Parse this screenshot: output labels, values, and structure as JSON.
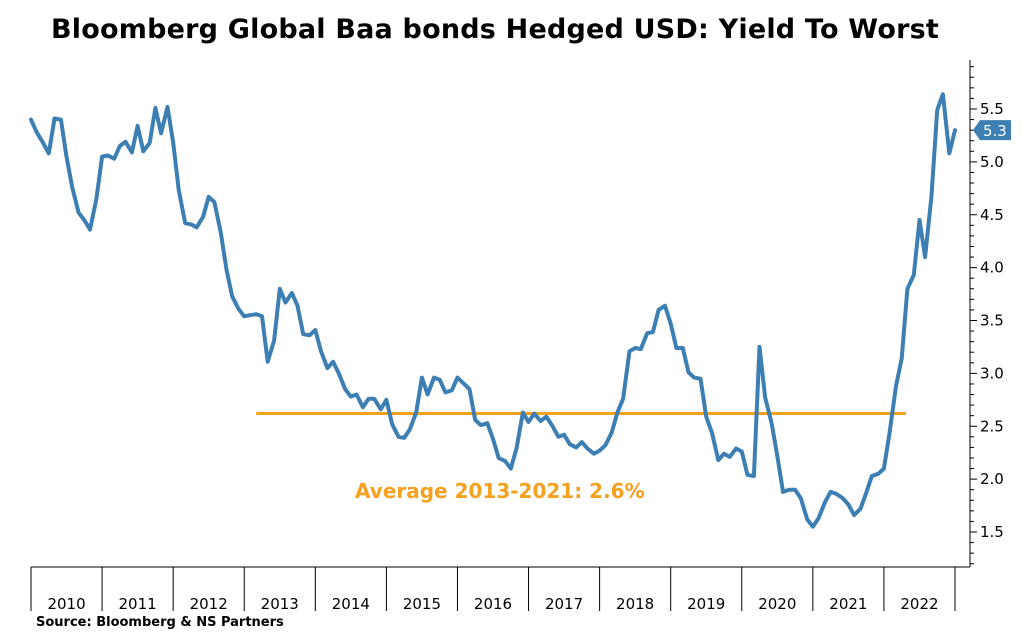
{
  "title": "Bloomberg Global Baa bonds Hedged USD: Yield To Worst",
  "source": "Source: Bloomberg & NS Partners",
  "colors": {
    "series": "#3d7fb3",
    "average": "#f5a01f",
    "axis": "#000000"
  },
  "chart_data": {
    "type": "line",
    "title": "Bloomberg Global Baa bonds Hedged USD: Yield To Worst",
    "x_categories": [
      "2010",
      "2011",
      "2012",
      "2013",
      "2014",
      "2015",
      "2016",
      "2017",
      "2018",
      "2019",
      "2020",
      "2021",
      "2022"
    ],
    "y_axis": {
      "side": "right",
      "ylim": [
        1.0,
        5.9
      ],
      "ticks": [
        "1.5",
        "2.0",
        "2.5",
        "3.0",
        "3.5",
        "4.0",
        "4.5",
        "5.0",
        "5.5"
      ]
    },
    "grid": false,
    "series": [
      {
        "name": "",
        "points": [
          [
            2010.0,
            5.4
          ],
          [
            2010.08,
            5.28
          ],
          [
            2010.17,
            5.18
          ],
          [
            2010.25,
            5.08
          ],
          [
            2010.33,
            5.41
          ],
          [
            2010.42,
            5.4
          ],
          [
            2010.5,
            5.05
          ],
          [
            2010.58,
            4.76
          ],
          [
            2010.67,
            4.52
          ],
          [
            2010.75,
            4.45
          ],
          [
            2010.83,
            4.36
          ],
          [
            2010.92,
            4.65
          ],
          [
            2011.0,
            5.05
          ],
          [
            2011.08,
            5.06
          ],
          [
            2011.17,
            5.03
          ],
          [
            2011.25,
            5.15
          ],
          [
            2011.33,
            5.19
          ],
          [
            2011.42,
            5.09
          ],
          [
            2011.5,
            5.34
          ],
          [
            2011.58,
            5.1
          ],
          [
            2011.67,
            5.18
          ],
          [
            2011.75,
            5.51
          ],
          [
            2011.83,
            5.27
          ],
          [
            2011.92,
            5.52
          ],
          [
            2012.0,
            5.18
          ],
          [
            2012.08,
            4.73
          ],
          [
            2012.17,
            4.42
          ],
          [
            2012.25,
            4.41
          ],
          [
            2012.33,
            4.38
          ],
          [
            2012.42,
            4.48
          ],
          [
            2012.5,
            4.67
          ],
          [
            2012.58,
            4.62
          ],
          [
            2012.67,
            4.33
          ],
          [
            2012.75,
            3.98
          ],
          [
            2012.83,
            3.73
          ],
          [
            2012.92,
            3.61
          ],
          [
            2013.0,
            3.54
          ],
          [
            2013.08,
            3.55
          ],
          [
            2013.17,
            3.56
          ],
          [
            2013.25,
            3.54
          ],
          [
            2013.33,
            3.11
          ],
          [
            2013.42,
            3.31
          ],
          [
            2013.5,
            3.8
          ],
          [
            2013.58,
            3.67
          ],
          [
            2013.67,
            3.76
          ],
          [
            2013.75,
            3.64
          ],
          [
            2013.83,
            3.37
          ],
          [
            2013.92,
            3.36
          ],
          [
            2014.0,
            3.41
          ],
          [
            2014.08,
            3.21
          ],
          [
            2014.17,
            3.05
          ],
          [
            2014.25,
            3.11
          ],
          [
            2014.33,
            3.0
          ],
          [
            2014.42,
            2.85
          ],
          [
            2014.5,
            2.78
          ],
          [
            2014.58,
            2.8
          ],
          [
            2014.67,
            2.68
          ],
          [
            2014.75,
            2.76
          ],
          [
            2014.83,
            2.76
          ],
          [
            2014.92,
            2.66
          ],
          [
            2015.0,
            2.75
          ],
          [
            2015.08,
            2.52
          ],
          [
            2015.17,
            2.4
          ],
          [
            2015.25,
            2.39
          ],
          [
            2015.33,
            2.47
          ],
          [
            2015.42,
            2.63
          ],
          [
            2015.5,
            2.96
          ],
          [
            2015.58,
            2.8
          ],
          [
            2015.67,
            2.96
          ],
          [
            2015.75,
            2.94
          ],
          [
            2015.83,
            2.82
          ],
          [
            2015.92,
            2.84
          ],
          [
            2016.0,
            2.96
          ],
          [
            2016.08,
            2.91
          ],
          [
            2016.17,
            2.85
          ],
          [
            2016.25,
            2.56
          ],
          [
            2016.33,
            2.51
          ],
          [
            2016.42,
            2.53
          ],
          [
            2016.5,
            2.38
          ],
          [
            2016.58,
            2.2
          ],
          [
            2016.67,
            2.17
          ],
          [
            2016.75,
            2.1
          ],
          [
            2016.83,
            2.29
          ],
          [
            2016.92,
            2.63
          ],
          [
            2017.0,
            2.54
          ],
          [
            2017.08,
            2.62
          ],
          [
            2017.17,
            2.55
          ],
          [
            2017.25,
            2.59
          ],
          [
            2017.33,
            2.51
          ],
          [
            2017.42,
            2.4
          ],
          [
            2017.5,
            2.42
          ],
          [
            2017.58,
            2.33
          ],
          [
            2017.67,
            2.3
          ],
          [
            2017.75,
            2.35
          ],
          [
            2017.83,
            2.29
          ],
          [
            2017.92,
            2.24
          ],
          [
            2018.0,
            2.27
          ],
          [
            2018.08,
            2.32
          ],
          [
            2018.17,
            2.44
          ],
          [
            2018.25,
            2.63
          ],
          [
            2018.33,
            2.76
          ],
          [
            2018.42,
            3.21
          ],
          [
            2018.5,
            3.24
          ],
          [
            2018.58,
            3.23
          ],
          [
            2018.67,
            3.38
          ],
          [
            2018.75,
            3.39
          ],
          [
            2018.83,
            3.6
          ],
          [
            2018.92,
            3.64
          ],
          [
            2019.0,
            3.47
          ],
          [
            2019.08,
            3.24
          ],
          [
            2019.17,
            3.24
          ],
          [
            2019.25,
            3.01
          ],
          [
            2019.33,
            2.96
          ],
          [
            2019.42,
            2.95
          ],
          [
            2019.5,
            2.59
          ],
          [
            2019.58,
            2.44
          ],
          [
            2019.67,
            2.18
          ],
          [
            2019.75,
            2.24
          ],
          [
            2019.83,
            2.21
          ],
          [
            2019.92,
            2.29
          ],
          [
            2020.0,
            2.26
          ],
          [
            2020.08,
            2.04
          ],
          [
            2020.17,
            2.03
          ],
          [
            2020.25,
            3.25
          ],
          [
            2020.33,
            2.77
          ],
          [
            2020.42,
            2.53
          ],
          [
            2020.5,
            2.22
          ],
          [
            2020.58,
            1.88
          ],
          [
            2020.67,
            1.9
          ],
          [
            2020.75,
            1.9
          ],
          [
            2020.83,
            1.82
          ],
          [
            2020.92,
            1.62
          ],
          [
            2021.0,
            1.55
          ],
          [
            2021.08,
            1.63
          ],
          [
            2021.17,
            1.78
          ],
          [
            2021.25,
            1.88
          ],
          [
            2021.33,
            1.86
          ],
          [
            2021.42,
            1.82
          ],
          [
            2021.5,
            1.76
          ],
          [
            2021.58,
            1.66
          ],
          [
            2021.67,
            1.72
          ],
          [
            2021.75,
            1.87
          ],
          [
            2021.83,
            2.03
          ],
          [
            2021.92,
            2.05
          ],
          [
            2022.0,
            2.1
          ],
          [
            2022.08,
            2.44
          ],
          [
            2022.17,
            2.88
          ],
          [
            2022.25,
            3.14
          ],
          [
            2022.33,
            3.8
          ],
          [
            2022.42,
            3.93
          ],
          [
            2022.5,
            4.45
          ],
          [
            2022.58,
            4.1
          ],
          [
            2022.67,
            4.68
          ],
          [
            2022.75,
            5.49
          ],
          [
            2022.83,
            5.64
          ],
          [
            2022.92,
            5.08
          ],
          [
            2023.0,
            5.3
          ]
        ]
      }
    ],
    "last_value_label": "5.3",
    "reference_line": {
      "value": 2.62,
      "from": 2013.0,
      "to": 2022.0,
      "label": "Average 2013-2021: 2.6%"
    }
  }
}
